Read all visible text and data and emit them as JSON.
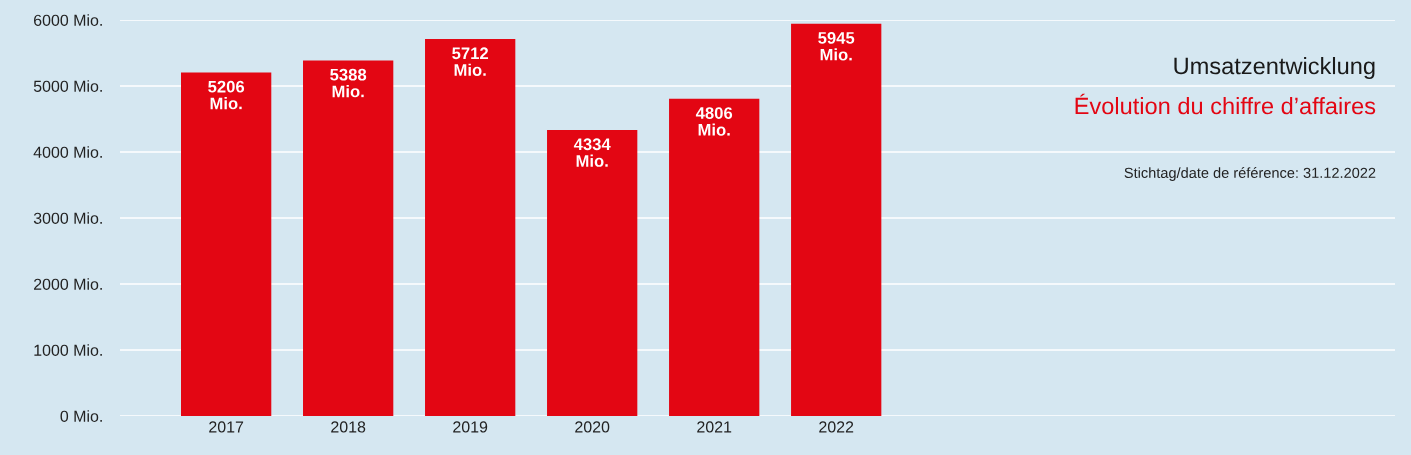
{
  "chart_data": {
    "type": "bar",
    "title": "Umsatzentwicklung",
    "subtitle": "Évolution du chiffre d’affaires",
    "annotations": [
      "Stichtag/date de référence: 31.12.2022"
    ],
    "categories": [
      "2017",
      "2018",
      "2019",
      "2020",
      "2021",
      "2022"
    ],
    "values": [
      5206,
      5388,
      5712,
      4334,
      4806,
      5945
    ],
    "value_labels": [
      "5206\nMio.",
      "5388\nMio.",
      "5712\nMio.",
      "4334\nMio.",
      "4806\nMio.",
      "5945\nMio."
    ],
    "color": "#e30613",
    "ylim": [
      0,
      6000
    ],
    "yticks": [
      {
        "value": 0,
        "label": "0 Mio."
      },
      {
        "value": 1000,
        "label": "1000 Mio."
      },
      {
        "value": 2000,
        "label": "2000 Mio."
      },
      {
        "value": 3000,
        "label": "3000 Mio."
      },
      {
        "value": 4000,
        "label": "4000 Mio."
      },
      {
        "value": 5000,
        "label": "5000 Mio."
      },
      {
        "value": 6000,
        "label": "6000 Mio."
      }
    ],
    "grid": "y"
  }
}
